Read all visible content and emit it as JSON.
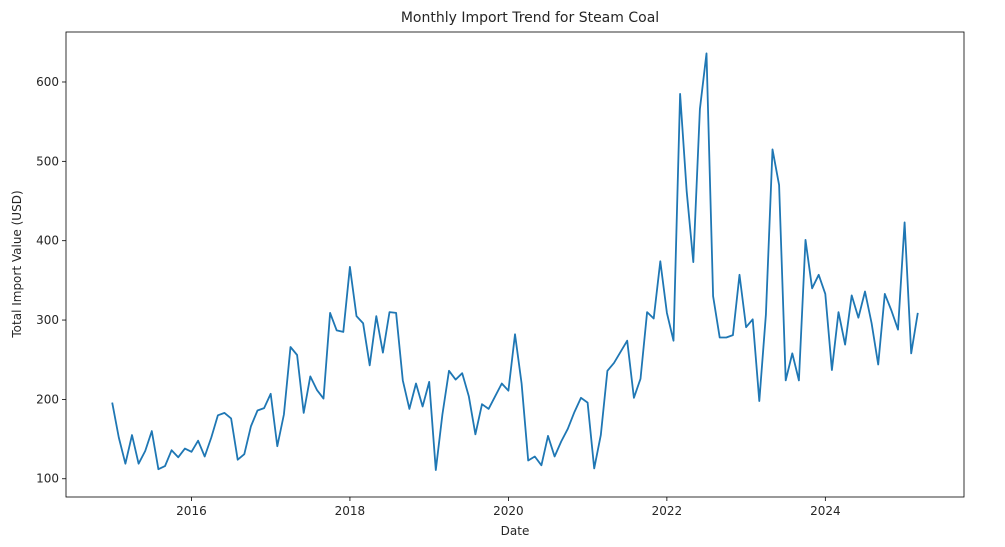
{
  "chart_data": {
    "type": "line",
    "title": "Monthly Import Trend for Steam Coal",
    "xlabel": "Date",
    "ylabel": "Total Import Value (USD)",
    "x_ticks": [
      "2016",
      "2018",
      "2020",
      "2022",
      "2024"
    ],
    "x_tick_years": [
      2016,
      2018,
      2020,
      2022,
      2024
    ],
    "y_ticks": [
      100,
      200,
      300,
      400,
      500,
      600
    ],
    "xlim": [
      "2014-06",
      "2025-10"
    ],
    "ylim": [
      77,
      663
    ],
    "grid": false,
    "legend": "none",
    "series_color": "#1f77b4",
    "series": [
      {
        "points": [
          [
            "2015-01",
            196
          ],
          [
            "2015-02",
            152
          ],
          [
            "2015-03",
            119
          ],
          [
            "2015-04",
            155
          ],
          [
            "2015-05",
            119
          ],
          [
            "2015-06",
            135
          ],
          [
            "2015-07",
            160
          ],
          [
            "2015-08",
            112
          ],
          [
            "2015-09",
            116
          ],
          [
            "2015-10",
            136
          ],
          [
            "2015-11",
            127
          ],
          [
            "2015-12",
            138
          ],
          [
            "2016-01",
            134
          ],
          [
            "2016-02",
            148
          ],
          [
            "2016-03",
            128
          ],
          [
            "2016-04",
            152
          ],
          [
            "2016-05",
            180
          ],
          [
            "2016-06",
            183
          ],
          [
            "2016-07",
            176
          ],
          [
            "2016-08",
            124
          ],
          [
            "2016-09",
            131
          ],
          [
            "2016-10",
            166
          ],
          [
            "2016-11",
            186
          ],
          [
            "2016-12",
            189
          ],
          [
            "2017-01",
            207
          ],
          [
            "2017-02",
            141
          ],
          [
            "2017-03",
            181
          ],
          [
            "2017-04",
            266
          ],
          [
            "2017-05",
            256
          ],
          [
            "2017-06",
            183
          ],
          [
            "2017-07",
            229
          ],
          [
            "2017-08",
            212
          ],
          [
            "2017-09",
            201
          ],
          [
            "2017-10",
            309
          ],
          [
            "2017-11",
            287
          ],
          [
            "2017-12",
            285
          ],
          [
            "2018-01",
            367
          ],
          [
            "2018-02",
            305
          ],
          [
            "2018-03",
            296
          ],
          [
            "2018-04",
            243
          ],
          [
            "2018-05",
            305
          ],
          [
            "2018-06",
            259
          ],
          [
            "2018-07",
            310
          ],
          [
            "2018-08",
            309
          ],
          [
            "2018-09",
            224
          ],
          [
            "2018-10",
            188
          ],
          [
            "2018-11",
            220
          ],
          [
            "2018-12",
            191
          ],
          [
            "2019-01",
            222
          ],
          [
            "2019-02",
            111
          ],
          [
            "2019-03",
            181
          ],
          [
            "2019-04",
            236
          ],
          [
            "2019-05",
            225
          ],
          [
            "2019-06",
            233
          ],
          [
            "2019-07",
            204
          ],
          [
            "2019-08",
            156
          ],
          [
            "2019-09",
            194
          ],
          [
            "2019-10",
            188
          ],
          [
            "2019-11",
            204
          ],
          [
            "2019-12",
            220
          ],
          [
            "2020-01",
            211
          ],
          [
            "2020-02",
            282
          ],
          [
            "2020-03",
            220
          ],
          [
            "2020-04",
            123
          ],
          [
            "2020-05",
            128
          ],
          [
            "2020-06",
            117
          ],
          [
            "2020-07",
            154
          ],
          [
            "2020-08",
            128
          ],
          [
            "2020-09",
            147
          ],
          [
            "2020-10",
            163
          ],
          [
            "2020-11",
            184
          ],
          [
            "2020-12",
            202
          ],
          [
            "2021-01",
            196
          ],
          [
            "2021-02",
            113
          ],
          [
            "2021-03",
            155
          ],
          [
            "2021-04",
            236
          ],
          [
            "2021-05",
            246
          ],
          [
            "2021-06",
            260
          ],
          [
            "2021-07",
            274
          ],
          [
            "2021-08",
            202
          ],
          [
            "2021-09",
            226
          ],
          [
            "2021-10",
            310
          ],
          [
            "2021-11",
            302
          ],
          [
            "2021-12",
            374
          ],
          [
            "2022-01",
            309
          ],
          [
            "2022-02",
            274
          ],
          [
            "2022-03",
            585
          ],
          [
            "2022-04",
            462
          ],
          [
            "2022-05",
            373
          ],
          [
            "2022-06",
            566
          ],
          [
            "2022-07",
            636
          ],
          [
            "2022-08",
            330
          ],
          [
            "2022-09",
            278
          ],
          [
            "2022-10",
            278
          ],
          [
            "2022-11",
            281
          ],
          [
            "2022-12",
            357
          ],
          [
            "2023-01",
            291
          ],
          [
            "2023-02",
            301
          ],
          [
            "2023-03",
            198
          ],
          [
            "2023-04",
            307
          ],
          [
            "2023-05",
            515
          ],
          [
            "2023-06",
            470
          ],
          [
            "2023-07",
            224
          ],
          [
            "2023-08",
            258
          ],
          [
            "2023-09",
            224
          ],
          [
            "2023-10",
            401
          ],
          [
            "2023-11",
            340
          ],
          [
            "2023-12",
            357
          ],
          [
            "2024-01",
            333
          ],
          [
            "2024-02",
            237
          ],
          [
            "2024-03",
            310
          ],
          [
            "2024-04",
            269
          ],
          [
            "2024-05",
            331
          ],
          [
            "2024-06",
            303
          ],
          [
            "2024-07",
            336
          ],
          [
            "2024-08",
            296
          ],
          [
            "2024-09",
            244
          ],
          [
            "2024-10",
            333
          ],
          [
            "2024-11",
            312
          ],
          [
            "2024-12",
            288
          ],
          [
            "2025-01",
            423
          ],
          [
            "2025-02",
            258
          ],
          [
            "2025-03",
            309
          ]
        ]
      }
    ]
  }
}
